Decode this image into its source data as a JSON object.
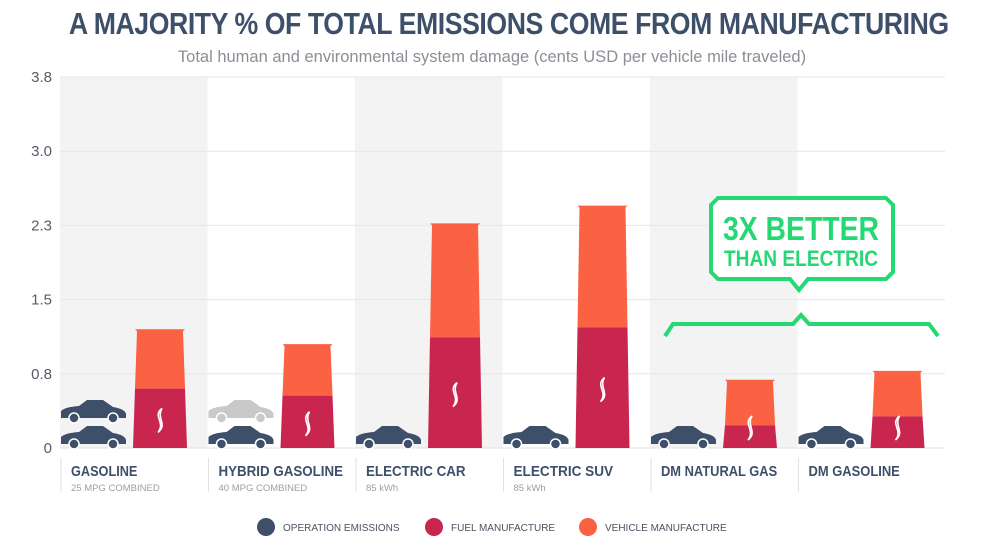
{
  "chart_data": {
    "type": "bar",
    "stacked": true,
    "title": "A MAJORITY % OF TOTAL EMISSIONS COME FROM MANUFACTURING",
    "subtitle": "Total human and environmental system damage (cents USD per vehicle mile traveled)",
    "ylim": [
      0,
      3.75
    ],
    "yticks": [
      0,
      0.75,
      1.5,
      2.25,
      3.0,
      3.75
    ],
    "ytick_labels": [
      "0",
      "0.8",
      "1.5",
      "2.3",
      "3.0",
      "3.8"
    ],
    "grid": true,
    "categories": [
      "GASOLINE",
      "HYBRID GASOLINE",
      "ELECTRIC CAR",
      "ELECTRIC SUV",
      "DM NATURAL GAS",
      "DM GASOLINE"
    ],
    "sublabels": [
      "25 MPG COMBINED",
      "40 MPG COMBINED",
      "85 kWh",
      "85 kWh",
      "",
      ""
    ],
    "series": [
      {
        "name": "OPERATION EMISSIONS",
        "color": "#3e4f6a",
        "values": [
          0.45,
          0.35,
          0.08,
          0.1,
          0.1,
          0.1
        ],
        "car_icons": [
          2,
          2,
          1,
          1,
          1,
          1
        ]
      },
      {
        "name": "FUEL MANUFACTURE",
        "color": "#c8254f",
        "values": [
          0.6,
          0.53,
          1.12,
          1.22,
          0.23,
          0.32
        ]
      },
      {
        "name": "VEHICLE MANUFACTURE",
        "color": "#fb6143",
        "values": [
          0.6,
          0.52,
          1.15,
          1.23,
          0.46,
          0.46
        ]
      }
    ],
    "legend": "bottom",
    "annotation": {
      "line1": "3X BETTER",
      "line2": "THAN ELECTRIC",
      "color": "#26d874",
      "spans": [
        "DM NATURAL GAS",
        "DM GASOLINE"
      ]
    }
  }
}
